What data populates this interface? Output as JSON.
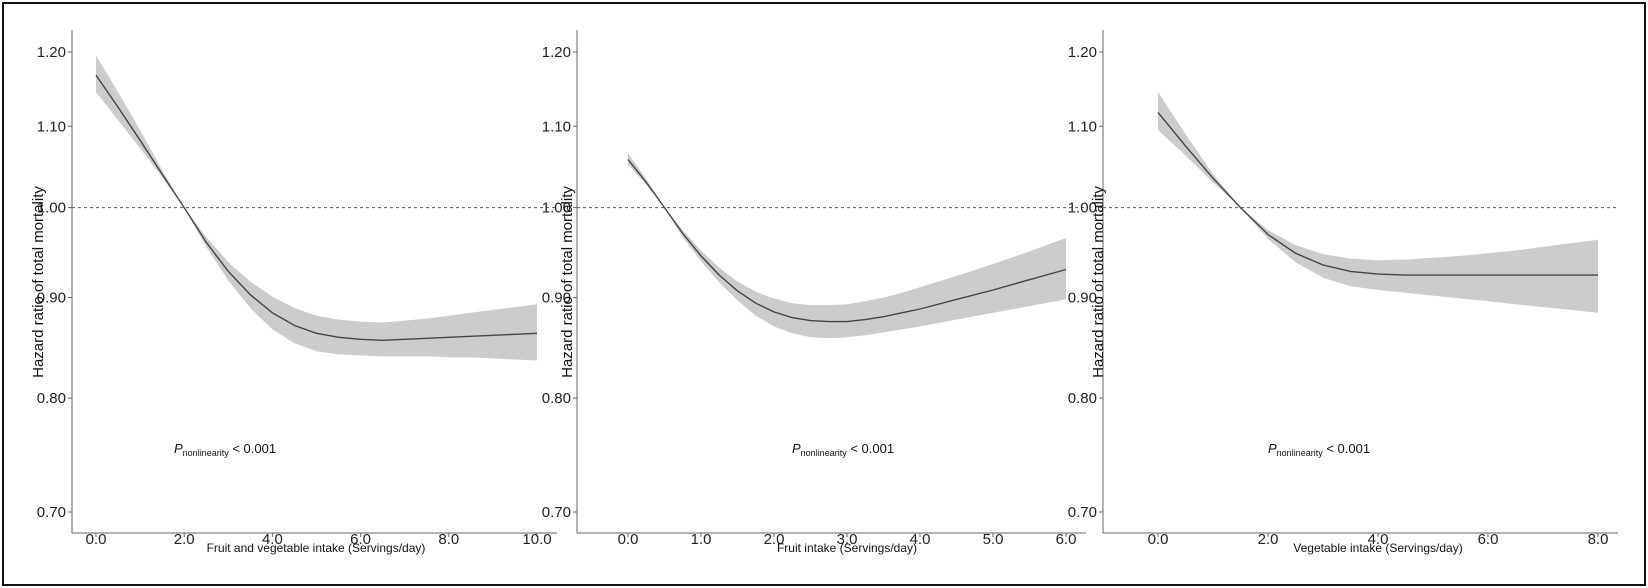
{
  "chart_data": [
    {
      "type": "line",
      "title": "",
      "xlabel": "Fruit and vegetable intake (Servings/day)",
      "ylabel": "Hazard ratio of total mortality",
      "xlim": [
        0,
        10
      ],
      "ylim": [
        0.7,
        1.2
      ],
      "log_y": true,
      "x_ticks": [
        0,
        2,
        4,
        6,
        8,
        10
      ],
      "x_tick_labels": [
        "0.0",
        "2.0",
        "4.0",
        "6.0",
        "8.0",
        "10.0"
      ],
      "y_ticks": [
        0.7,
        0.8,
        0.9,
        1.0,
        1.1,
        1.2
      ],
      "y_tick_labels": [
        "0.70",
        "0.80",
        "0.90",
        "1.00",
        "1.10",
        "1.20"
      ],
      "reference_line": 1.0,
      "annotation": {
        "italic": "P",
        "subscript": "nonlinearity",
        "text": " < 0.001"
      },
      "series": [
        {
          "x": [
            0,
            0.5,
            1,
            1.5,
            2,
            2.5,
            3,
            3.5,
            4,
            4.5,
            5,
            5.5,
            6,
            6.5,
            7,
            7.5,
            8,
            8.5,
            9,
            9.5,
            10
          ],
          "y": [
            1.168,
            1.125,
            1.082,
            1.04,
            1.0,
            0.96,
            0.928,
            0.903,
            0.884,
            0.871,
            0.863,
            0.859,
            0.857,
            0.856,
            0.857,
            0.858,
            0.859,
            0.86,
            0.861,
            0.862,
            0.863
          ],
          "lower": [
            1.145,
            1.108,
            1.072,
            1.036,
            1.0,
            0.955,
            0.918,
            0.889,
            0.867,
            0.853,
            0.845,
            0.842,
            0.841,
            0.84,
            0.84,
            0.84,
            0.839,
            0.839,
            0.838,
            0.837,
            0.836
          ],
          "upper": [
            1.195,
            1.145,
            1.095,
            1.045,
            1.0,
            0.966,
            0.938,
            0.917,
            0.901,
            0.889,
            0.881,
            0.877,
            0.875,
            0.874,
            0.876,
            0.878,
            0.881,
            0.884,
            0.887,
            0.89,
            0.893
          ]
        }
      ]
    },
    {
      "type": "line",
      "title": "",
      "xlabel": "Fruit intake (Servings/day)",
      "ylabel": "Hazard ratio of total mortality",
      "xlim": [
        0,
        6
      ],
      "ylim": [
        0.7,
        1.2
      ],
      "log_y": true,
      "x_ticks": [
        0,
        1,
        2,
        3,
        4,
        5,
        6
      ],
      "x_tick_labels": [
        "0.0",
        "1.0",
        "2.0",
        "3.0",
        "4.0",
        "5.0",
        "6.0"
      ],
      "y_ticks": [
        0.7,
        0.8,
        0.9,
        1.0,
        1.1,
        1.2
      ],
      "y_tick_labels": [
        "0.70",
        "0.80",
        "0.90",
        "1.00",
        "1.10",
        "1.20"
      ],
      "reference_line": 1.0,
      "annotation": {
        "italic": "P",
        "subscript": "nonlinearity",
        "text": " < 0.001"
      },
      "series": [
        {
          "x": [
            0,
            0.25,
            0.5,
            0.75,
            1,
            1.25,
            1.5,
            1.75,
            2,
            2.25,
            2.5,
            2.75,
            3,
            3.25,
            3.5,
            3.75,
            4,
            4.5,
            5,
            5.5,
            6
          ],
          "y": [
            1.058,
            1.03,
            1.0,
            0.97,
            0.945,
            0.924,
            0.907,
            0.894,
            0.885,
            0.879,
            0.876,
            0.875,
            0.875,
            0.877,
            0.88,
            0.884,
            0.888,
            0.898,
            0.908,
            0.919,
            0.93
          ],
          "lower": [
            1.052,
            1.027,
            1.0,
            0.966,
            0.939,
            0.916,
            0.897,
            0.881,
            0.87,
            0.863,
            0.859,
            0.858,
            0.859,
            0.861,
            0.864,
            0.867,
            0.87,
            0.877,
            0.884,
            0.891,
            0.898
          ],
          "upper": [
            1.066,
            1.034,
            1.0,
            0.974,
            0.951,
            0.932,
            0.917,
            0.906,
            0.899,
            0.894,
            0.892,
            0.892,
            0.893,
            0.896,
            0.9,
            0.905,
            0.911,
            0.923,
            0.936,
            0.95,
            0.965
          ]
        }
      ]
    },
    {
      "type": "line",
      "title": "",
      "xlabel": "Vegetable intake (Servings/day)",
      "ylabel": "Hazard ratio of total mortality",
      "xlim": [
        0,
        8
      ],
      "ylim": [
        0.7,
        1.2
      ],
      "log_y": true,
      "x_ticks": [
        0,
        2,
        4,
        6,
        8
      ],
      "x_tick_labels": [
        "0.0",
        "2.0",
        "4.0",
        "6.0",
        "8.0"
      ],
      "y_ticks": [
        0.7,
        0.8,
        0.9,
        1.0,
        1.1,
        1.2
      ],
      "y_tick_labels": [
        "0.70",
        "0.80",
        "0.90",
        "1.00",
        "1.10",
        "1.20"
      ],
      "reference_line": 1.0,
      "annotation": {
        "italic": "P",
        "subscript": "nonlinearity",
        "text": " < 0.001"
      },
      "series": [
        {
          "x": [
            0,
            0.5,
            1,
            1.5,
            2,
            2.5,
            3,
            3.5,
            4,
            4.5,
            5,
            5.5,
            6,
            6.5,
            7,
            7.5,
            8
          ],
          "y": [
            1.118,
            1.075,
            1.035,
            1.0,
            0.969,
            0.948,
            0.935,
            0.928,
            0.925,
            0.924,
            0.924,
            0.924,
            0.924,
            0.924,
            0.924,
            0.924,
            0.924
          ],
          "lower": [
            1.095,
            1.063,
            1.03,
            1.0,
            0.964,
            0.938,
            0.921,
            0.912,
            0.908,
            0.905,
            0.902,
            0.899,
            0.896,
            0.893,
            0.89,
            0.887,
            0.884
          ],
          "upper": [
            1.145,
            1.09,
            1.04,
            1.0,
            0.974,
            0.957,
            0.947,
            0.942,
            0.94,
            0.941,
            0.943,
            0.945,
            0.948,
            0.951,
            0.955,
            0.959,
            0.963
          ]
        }
      ]
    }
  ]
}
